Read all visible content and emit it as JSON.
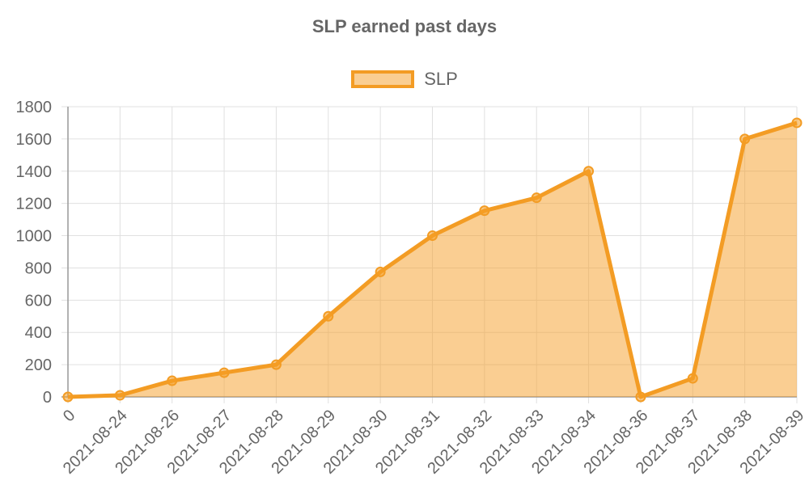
{
  "chart_data": {
    "type": "area",
    "title": "SLP earned past days",
    "xlabel": "",
    "ylabel": "",
    "categories": [
      "0",
      "2021-08-24",
      "2021-08-26",
      "2021-08-27",
      "2021-08-28",
      "2021-08-29",
      "2021-08-30",
      "2021-08-31",
      "2021-08-32",
      "2021-08-33",
      "2021-08-34",
      "2021-08-36",
      "2021-08-37",
      "2021-08-38",
      "2021-08-39"
    ],
    "series": [
      {
        "name": "SLP",
        "values": [
          0,
          10,
          100,
          150,
          200,
          500,
          775,
          1000,
          1155,
          1235,
          1400,
          0,
          115,
          1600,
          1700
        ]
      }
    ],
    "ylim": [
      0,
      1800
    ],
    "yticks": [
      0,
      200,
      400,
      600,
      800,
      1000,
      1200,
      1400,
      1600,
      1800
    ],
    "grid": true,
    "legend_position": "top",
    "colors": {
      "line": "#f39c24",
      "fill": "rgba(245,158,37,0.5)",
      "grid": "#e0e0e0",
      "axis": "#999999",
      "text": "#666666"
    }
  }
}
